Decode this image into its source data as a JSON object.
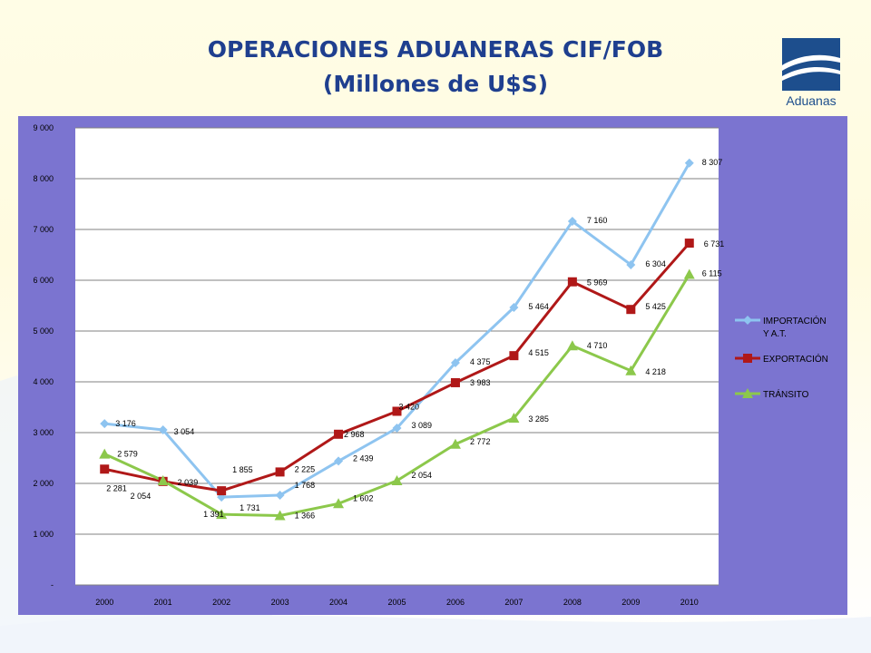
{
  "slide": {
    "title_line1": "OPERACIONES ADUANERAS CIF/FOB",
    "title_line2": "(Millones de U$S)",
    "logo_text": "Aduanas"
  },
  "chart_data": {
    "type": "line",
    "categories": [
      "2000",
      "2001",
      "2002",
      "2003",
      "2004",
      "2005",
      "2006",
      "2007",
      "2008",
      "2009",
      "2010"
    ],
    "ylim": [
      0,
      9000
    ],
    "yticks": [
      {
        "value": 0,
        "label": "-"
      },
      {
        "value": 1000,
        "label": "1 000"
      },
      {
        "value": 2000,
        "label": "2 000"
      },
      {
        "value": 3000,
        "label": "3 000"
      },
      {
        "value": 4000,
        "label": "4 000"
      },
      {
        "value": 5000,
        "label": "5 000"
      },
      {
        "value": 6000,
        "label": "6 000"
      },
      {
        "value": 7000,
        "label": "7 000"
      },
      {
        "value": 8000,
        "label": "8 000"
      },
      {
        "value": 9000,
        "label": "9 000"
      }
    ],
    "grid": true,
    "legend_position": "right",
    "series": [
      {
        "name_lines": [
          "IMPORTACIÓN",
          "Y A.T."
        ],
        "color": "#8ec4f0",
        "marker": "diamond",
        "values": [
          3176,
          3054,
          1731,
          1768,
          2439,
          3089,
          4375,
          5464,
          7160,
          6304,
          8307
        ],
        "labels": [
          "3 176",
          "3 054",
          "1 731",
          "1 768",
          "2 439",
          "3 089",
          "4 375",
          "5 464",
          "7 160",
          "6 304",
          "8 307"
        ]
      },
      {
        "name_lines": [
          "EXPORTACIÓN"
        ],
        "color": "#b01818",
        "marker": "square",
        "values": [
          2281,
          2039,
          1855,
          2225,
          2968,
          3420,
          3983,
          4515,
          5969,
          5425,
          6731
        ],
        "labels": [
          "2 281",
          "2 039",
          "1 855",
          "2 225",
          "2 968",
          "3 420",
          "3 983",
          "4 515",
          "5 969",
          "5 425",
          "6 731"
        ]
      },
      {
        "name_lines": [
          "TRÁNSITO"
        ],
        "color": "#8cc84b",
        "marker": "triangle",
        "values": [
          2579,
          2054,
          1391,
          1366,
          1602,
          2054,
          2772,
          3285,
          4710,
          4218,
          6115
        ],
        "labels": [
          "2 579",
          "2 054",
          "1 391",
          "1 366",
          "1 602",
          "2 054",
          "2 772",
          "3 285",
          "4 710",
          "4 218",
          "6 115"
        ]
      }
    ]
  }
}
